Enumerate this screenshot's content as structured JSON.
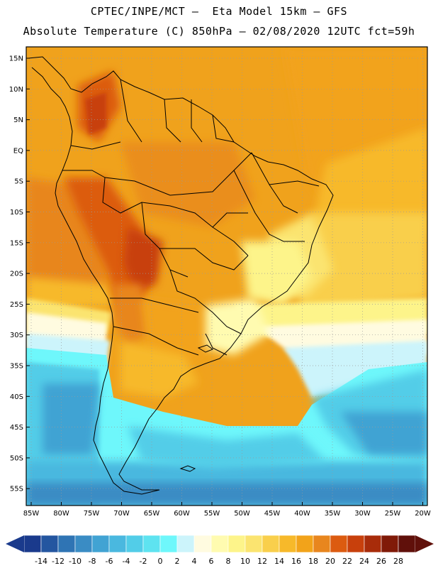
{
  "header": {
    "line1": "CPTEC/INPE/MCT –  Eta Model 15km – GFS",
    "line2": "Absolute Temperature (C) 850hPa – 02/08/2020 12UTC fct=59h"
  },
  "map": {
    "lat_labels": [
      "15N",
      "10N",
      "5N",
      "EQ",
      "5S",
      "10S",
      "15S",
      "20S",
      "25S",
      "30S",
      "35S",
      "40S",
      "45S",
      "50S",
      "55S"
    ],
    "lon_labels": [
      "85W",
      "80W",
      "75W",
      "70W",
      "65W",
      "60W",
      "55W",
      "50W",
      "45W",
      "40W",
      "35W",
      "30W",
      "25W",
      "20W"
    ],
    "grid": "dotted"
  },
  "colorbar": {
    "labels": [
      "-14",
      "-12",
      "-10",
      "-8",
      "-6",
      "-4",
      "-2",
      "0",
      "2",
      "4",
      "6",
      "8",
      "10",
      "12",
      "14",
      "16",
      "18",
      "20",
      "22",
      "24",
      "26",
      "28"
    ],
    "colors": [
      "#1a3a8c",
      "#2456a0",
      "#2f74b4",
      "#3a8cc4",
      "#41a3d3",
      "#4ab8df",
      "#52cde8",
      "#5ee3f0",
      "#6ef7fb",
      "#ccf4fb",
      "#fffbe0",
      "#fffbb0",
      "#fdf48a",
      "#fbe470",
      "#f9cf4c",
      "#f7b92a",
      "#f2a31a",
      "#e8861e",
      "#dc5b10",
      "#c8400c",
      "#a82c0a",
      "#801a08",
      "#60100a"
    ]
  }
}
